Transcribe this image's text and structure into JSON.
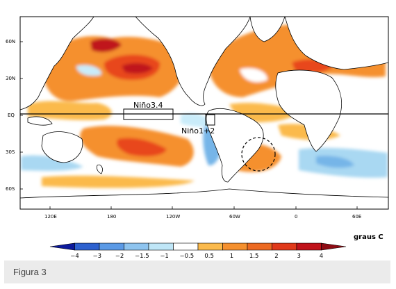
{
  "map": {
    "lat_ticks": [
      "60N",
      "30N",
      "EQ",
      "30S",
      "60S"
    ],
    "lon_ticks": [
      "120E",
      "180",
      "120W",
      "60W",
      "0",
      "60E"
    ],
    "region_labels": {
      "nino34": "Niño3.4",
      "nino12": "Niño1+2"
    },
    "colors": {
      "strong_warm": "#c0121a",
      "warm": "#e8461b",
      "mild_warm": "#f5902e",
      "slight_warm": "#fbba4c",
      "slight_cool": "#c9ecfa",
      "cool": "#a9d8f2",
      "cold": "#76b5e8",
      "land": "#ffffff",
      "coast": "#000000"
    }
  },
  "colorbar": {
    "unit": "graus C",
    "labels": [
      "−4",
      "−3",
      "−2",
      "−1.5",
      "−1",
      "−0.5",
      "0.5",
      "1",
      "1.5",
      "2",
      "3",
      "4"
    ],
    "colors": [
      "#0d1a9c",
      "#2d61cf",
      "#5b9ae6",
      "#8ec4ef",
      "#bfe6f7",
      "#ffffff",
      "#fbba4c",
      "#f5902e",
      "#ec6a22",
      "#e0391a",
      "#c0121a",
      "#8e0c14"
    ]
  },
  "caption": {
    "text": "Figura 3"
  }
}
